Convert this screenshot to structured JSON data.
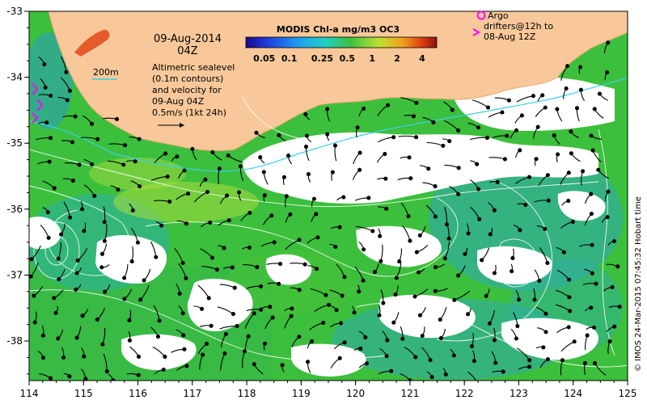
{
  "map": {
    "date": "09-Aug-2014",
    "time": "04Z",
    "legend_title": "MODIS Chl-a mg/m3 OC3",
    "colorbar_ticks": [
      "0.05",
      "0.1",
      "0.25",
      "0.5",
      "1",
      "2",
      "4"
    ],
    "colorbar_values": [
      0.05,
      0.1,
      0.25,
      0.5,
      1,
      2,
      4
    ],
    "isobath_label": "200m",
    "note_lines": [
      "Altimetric sealevel",
      "(0.1m contours)",
      "and velocity for",
      "09-Aug 04Z",
      "0.5m/s (1kt 24h)"
    ],
    "argo_lines": [
      "Argo",
      "drifters@12h to",
      "08-Aug 12Z"
    ],
    "credit": "© IMOS 24-Mar-2015 07:45:32 Hobart time",
    "lon_ticks": [
      "114",
      "115",
      "116",
      "117",
      "118",
      "119",
      "120",
      "121",
      "122",
      "123",
      "124",
      "125"
    ],
    "lat_ticks": [
      "-33",
      "-34",
      "-35",
      "-36",
      "-37",
      "-38"
    ],
    "lon_range": [
      114,
      125
    ],
    "lat_range": [
      -38.6,
      -33
    ],
    "colors": {
      "land": "#f8c89a",
      "cloud": "#ffffff",
      "ocean_low": "#2ca8c4",
      "ocean_mid": "#3bbf3a",
      "ocean_high": "#c8e43a",
      "contour": "#ffffff",
      "isobath": "#3ad0e8",
      "argo": "#ff00ff",
      "arrow": "#000000"
    }
  }
}
